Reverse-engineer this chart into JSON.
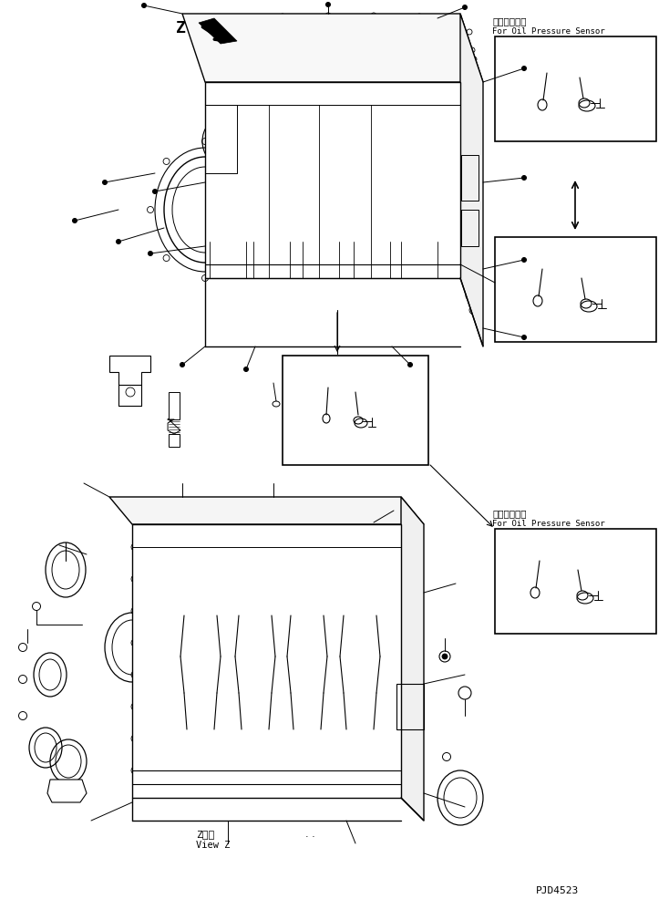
{
  "bg_color": "#ffffff",
  "line_color": "#000000",
  "text_color": "#000000",
  "label1_jp": "油圧センサ用",
  "label1_en": "For Oil Pressure Sensor",
  "label2_jp": "油圧センサ用",
  "label2_en": "For Oil Pressure Sensor",
  "view_label_jp": "Z　視",
  "view_label_en": "View Z",
  "part_number": "PJD4523",
  "fig_width": 7.34,
  "fig_height": 9.86,
  "dpi": 100
}
